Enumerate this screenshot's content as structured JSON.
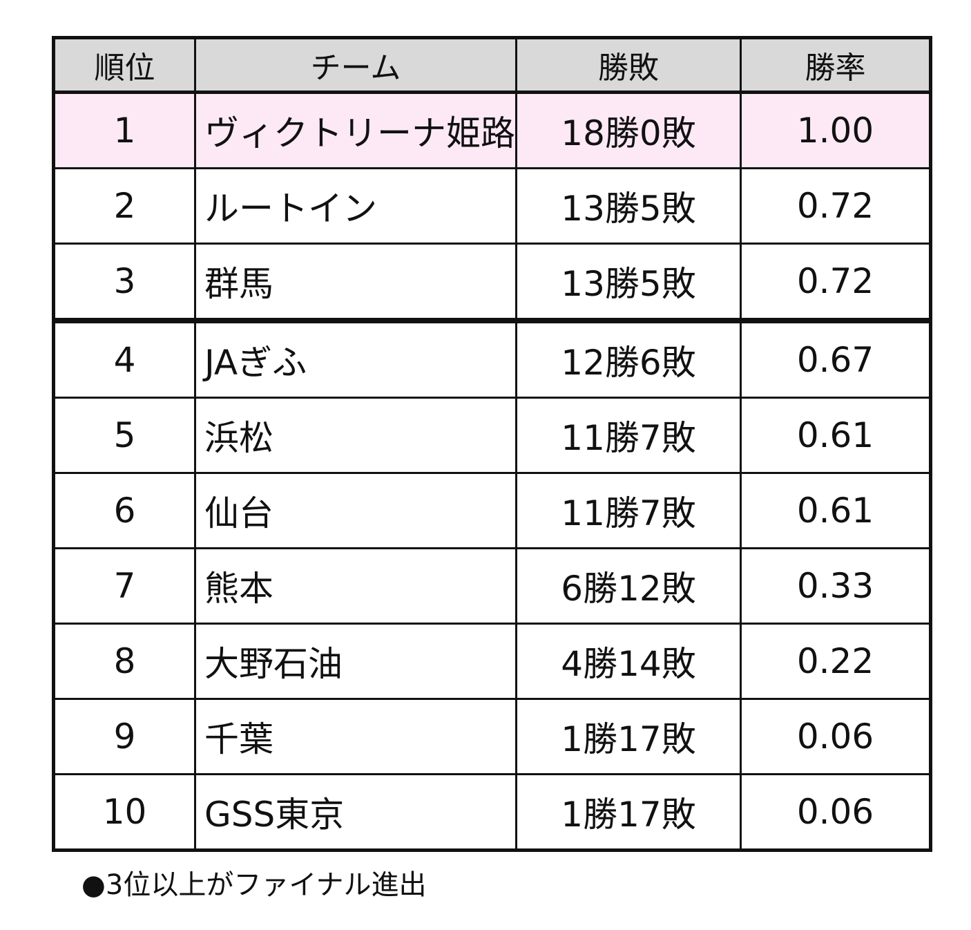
{
  "table": {
    "headers": {
      "rank": "順位",
      "team": "チーム",
      "record": "勝敗",
      "pct": "勝率"
    },
    "rows": [
      {
        "rank": "1",
        "team": "ヴィクトリーナ姫路",
        "record": "18勝0敗",
        "pct": "1.00"
      },
      {
        "rank": "2",
        "team": "ルートイン",
        "record": "13勝5敗",
        "pct": "0.72"
      },
      {
        "rank": "3",
        "team": "群馬",
        "record": "13勝5敗",
        "pct": "0.72"
      },
      {
        "rank": "4",
        "team": "JAぎふ",
        "record": "12勝6敗",
        "pct": "0.67"
      },
      {
        "rank": "5",
        "team": "浜松",
        "record": "11勝7敗",
        "pct": "0.61"
      },
      {
        "rank": "6",
        "team": "仙台",
        "record": "11勝7敗",
        "pct": "0.61"
      },
      {
        "rank": "7",
        "team": "熊本",
        "record": "6勝12敗",
        "pct": "0.33"
      },
      {
        "rank": "8",
        "team": "大野石油",
        "record": "4勝14敗",
        "pct": "0.22"
      },
      {
        "rank": "9",
        "team": "千葉",
        "record": "1勝17敗",
        "pct": "0.06"
      },
      {
        "rank": "10",
        "team": "GSS東京",
        "record": "1勝17敗",
        "pct": "0.06"
      }
    ]
  },
  "footnote": "●3位以上がファイナル進出",
  "colors": {
    "header_bg": "#d9d9d9",
    "highlight_bg": "#fde9f5",
    "border": "#111111"
  }
}
